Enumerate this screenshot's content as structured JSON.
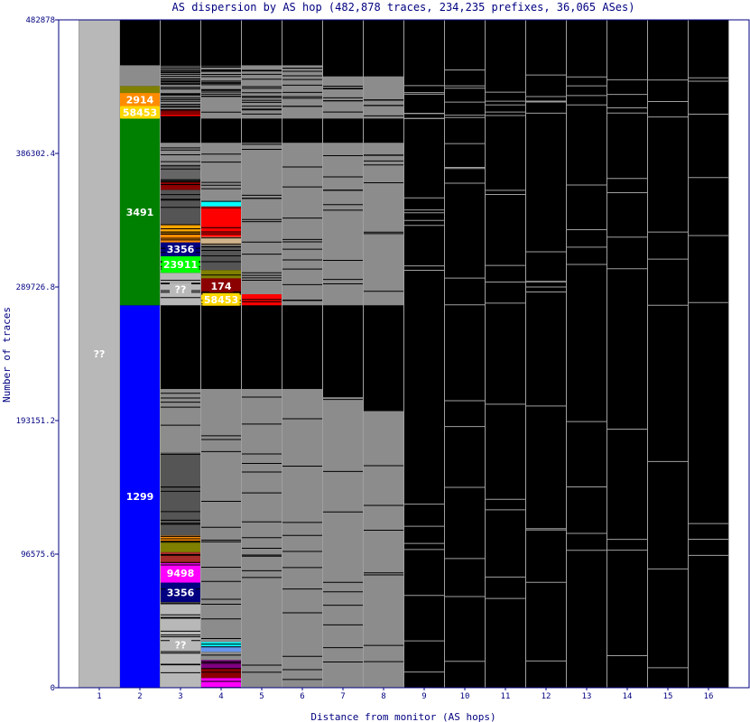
{
  "chart_data": {
    "type": "bar",
    "title": "AS dispersion by AS hop (482,878 traces, 234,235 prefixes, 36,065 ASes)",
    "xlabel": "Distance from monitor (AS hops)",
    "ylabel": "Number of traces",
    "ylim": [
      0,
      482878
    ],
    "yticks": [
      "0",
      "96575.6",
      "193151.2",
      "289726.8",
      "386302.4",
      "482878"
    ],
    "categories": [
      "1",
      "2",
      "3",
      "4",
      "5",
      "6",
      "7",
      "8",
      "9",
      "10",
      "11",
      "12",
      "13",
      "14",
      "15",
      "16"
    ],
    "grid": false,
    "colors": {
      "background": "#000000",
      "unknown": "#b8b8b8",
      "minor": "#8c8c8c",
      "divider": "#a0a0a0",
      "axis": "#000080"
    },
    "segments": [
      {
        "hop": 1,
        "from": 0,
        "to": 482878,
        "color": "#b8b8b8",
        "label": "??"
      },
      {
        "hop": 2,
        "from": 0,
        "to": 276500,
        "color": "#0000ff",
        "label": "1299"
      },
      {
        "hop": 2,
        "from": 276500,
        "to": 411500,
        "color": "#008000",
        "label": "3491"
      },
      {
        "hop": 2,
        "from": 411500,
        "to": 420500,
        "color": "#ffd700",
        "label": "58453"
      },
      {
        "hop": 2,
        "from": 420500,
        "to": 430000,
        "color": "#ff8c00",
        "label": "2914"
      },
      {
        "hop": 2,
        "from": 430000,
        "to": 435000,
        "color": "#808000",
        "label": ""
      },
      {
        "hop": 2,
        "from": 435000,
        "to": 450000,
        "color": "#8c8c8c",
        "label": ""
      },
      {
        "hop": 3,
        "from": 0,
        "to": 62000,
        "color": "#b8b8b8",
        "label": "??"
      },
      {
        "hop": 3,
        "from": 62000,
        "to": 76000,
        "color": "#000080",
        "label": "3356"
      },
      {
        "hop": 3,
        "from": 76000,
        "to": 90000,
        "color": "#ff00ff",
        "label": "9498"
      },
      {
        "hop": 3,
        "from": 90000,
        "to": 98000,
        "color": "#a52a2a",
        "label": ""
      },
      {
        "hop": 3,
        "from": 98000,
        "to": 106000,
        "color": "#808000",
        "label": ""
      },
      {
        "hop": 3,
        "from": 106000,
        "to": 110000,
        "color": "#ff8c00",
        "label": ""
      },
      {
        "hop": 3,
        "from": 110000,
        "to": 170000,
        "color": "#555555",
        "label": ""
      },
      {
        "hop": 3,
        "from": 170000,
        "to": 216000,
        "color": "#8c8c8c",
        "label": ""
      },
      {
        "hop": 3,
        "from": 276500,
        "to": 300000,
        "color": "#b8b8b8",
        "label": "??"
      },
      {
        "hop": 3,
        "from": 300000,
        "to": 312000,
        "color": "#00ff00",
        "label": "23911"
      },
      {
        "hop": 3,
        "from": 312000,
        "to": 322000,
        "color": "#000080",
        "label": "3356"
      },
      {
        "hop": 3,
        "from": 322000,
        "to": 328000,
        "color": "#ff8c00",
        "label": ""
      },
      {
        "hop": 3,
        "from": 328000,
        "to": 335000,
        "color": "#ffa500",
        "label": ""
      },
      {
        "hop": 3,
        "from": 335000,
        "to": 360000,
        "color": "#555555",
        "label": ""
      },
      {
        "hop": 3,
        "from": 360000,
        "to": 366000,
        "color": "#8b0000",
        "label": ""
      },
      {
        "hop": 3,
        "from": 366000,
        "to": 378000,
        "color": "#666666",
        "label": ""
      },
      {
        "hop": 3,
        "from": 378000,
        "to": 394000,
        "color": "#8c8c8c",
        "label": ""
      },
      {
        "hop": 3,
        "from": 411500,
        "to": 418000,
        "color": "#ff0000",
        "label": ""
      },
      {
        "hop": 3,
        "from": 418000,
        "to": 450000,
        "color": "#8c8c8c",
        "label": ""
      },
      {
        "hop": 4,
        "from": 0,
        "to": 7000,
        "color": "#ff00ff",
        "label": ""
      },
      {
        "hop": 4,
        "from": 7000,
        "to": 14000,
        "color": "#8b0000",
        "label": ""
      },
      {
        "hop": 4,
        "from": 14000,
        "to": 20000,
        "color": "#800080",
        "label": ""
      },
      {
        "hop": 4,
        "from": 20000,
        "to": 26000,
        "color": "#8c8c8c",
        "label": ""
      },
      {
        "hop": 4,
        "from": 26000,
        "to": 30000,
        "color": "#6495ed",
        "label": ""
      },
      {
        "hop": 4,
        "from": 30000,
        "to": 33000,
        "color": "#00ffff",
        "label": ""
      },
      {
        "hop": 4,
        "from": 33000,
        "to": 216000,
        "color": "#8c8c8c",
        "label": ""
      },
      {
        "hop": 4,
        "from": 276500,
        "to": 285000,
        "color": "#ffd700",
        "label": "58453"
      },
      {
        "hop": 4,
        "from": 285000,
        "to": 296000,
        "color": "#8b0000",
        "label": "174"
      },
      {
        "hop": 4,
        "from": 296000,
        "to": 302000,
        "color": "#808000",
        "label": ""
      },
      {
        "hop": 4,
        "from": 302000,
        "to": 320000,
        "color": "#555555",
        "label": ""
      },
      {
        "hop": 4,
        "from": 320000,
        "to": 326000,
        "color": "#d2b48c",
        "label": ""
      },
      {
        "hop": 4,
        "from": 326000,
        "to": 348000,
        "color": "#ff0000",
        "label": ""
      },
      {
        "hop": 4,
        "from": 348000,
        "to": 352000,
        "color": "#00ffff",
        "label": ""
      },
      {
        "hop": 4,
        "from": 352000,
        "to": 394000,
        "color": "#8c8c8c",
        "label": ""
      },
      {
        "hop": 4,
        "from": 411500,
        "to": 450000,
        "color": "#8c8c8c",
        "label": ""
      },
      {
        "hop": 5,
        "from": 0,
        "to": 216000,
        "color": "#8c8c8c",
        "label": ""
      },
      {
        "hop": 5,
        "from": 276500,
        "to": 284500,
        "color": "#ff0000",
        "label": ""
      },
      {
        "hop": 5,
        "from": 284500,
        "to": 394000,
        "color": "#8c8c8c",
        "label": ""
      },
      {
        "hop": 5,
        "from": 411500,
        "to": 450000,
        "color": "#8c8c8c",
        "label": ""
      },
      {
        "hop": 6,
        "from": 0,
        "to": 216000,
        "color": "#8c8c8c",
        "label": ""
      },
      {
        "hop": 6,
        "from": 276500,
        "to": 394000,
        "color": "#8c8c8c",
        "label": ""
      },
      {
        "hop": 6,
        "from": 411500,
        "to": 450000,
        "color": "#8c8c8c",
        "label": ""
      },
      {
        "hop": 7,
        "from": 0,
        "to": 210000,
        "color": "#8c8c8c",
        "label": ""
      },
      {
        "hop": 7,
        "from": 276500,
        "to": 394000,
        "color": "#8c8c8c",
        "label": ""
      },
      {
        "hop": 7,
        "from": 411500,
        "to": 442000,
        "color": "#8c8c8c",
        "label": ""
      },
      {
        "hop": 8,
        "from": 0,
        "to": 200000,
        "color": "#8c8c8c",
        "label": ""
      },
      {
        "hop": 8,
        "from": 276500,
        "to": 394000,
        "color": "#8c8c8c",
        "label": ""
      },
      {
        "hop": 8,
        "from": 411500,
        "to": 442000,
        "color": "#8c8c8c",
        "label": ""
      }
    ]
  }
}
